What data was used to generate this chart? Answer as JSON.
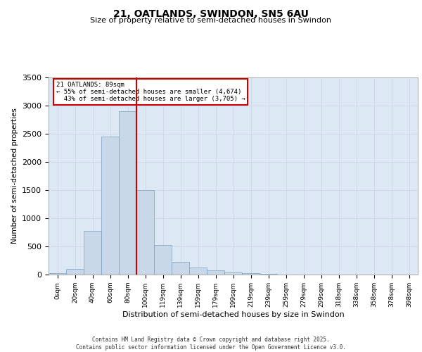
{
  "title_line1": "21, OATLANDS, SWINDON, SN5 6AU",
  "title_line2": "Size of property relative to semi-detached houses in Swindon",
  "xlabel": "Distribution of semi-detached houses by size in Swindon",
  "ylabel": "Number of semi-detached properties",
  "property_label": "21 OATLANDS: 89sqm",
  "pct_smaller": 55,
  "count_smaller": 4674,
  "pct_larger": 43,
  "count_larger": 3705,
  "bin_labels": [
    "0sqm",
    "20sqm",
    "40sqm",
    "60sqm",
    "80sqm",
    "100sqm",
    "119sqm",
    "139sqm",
    "159sqm",
    "179sqm",
    "199sqm",
    "219sqm",
    "239sqm",
    "259sqm",
    "279sqm",
    "299sqm",
    "318sqm",
    "338sqm",
    "358sqm",
    "378sqm",
    "398sqm"
  ],
  "bar_values": [
    30,
    100,
    780,
    2450,
    2900,
    1500,
    530,
    230,
    120,
    70,
    40,
    20,
    10,
    5,
    3,
    2,
    1,
    1,
    0,
    0,
    0
  ],
  "bar_color": "#c8d8e8",
  "bar_edge_color": "#7aa0c0",
  "vline_color": "#cc0000",
  "vline_x": 4.5,
  "ylim": [
    0,
    3500
  ],
  "yticks": [
    0,
    500,
    1000,
    1500,
    2000,
    2500,
    3000,
    3500
  ],
  "grid_color": "#d0d8e8",
  "annotation_box_color": "#cc0000",
  "footer": "Contains HM Land Registry data © Crown copyright and database right 2025.\nContains public sector information licensed under the Open Government Licence v3.0.",
  "bg_color": "#dde8f5"
}
